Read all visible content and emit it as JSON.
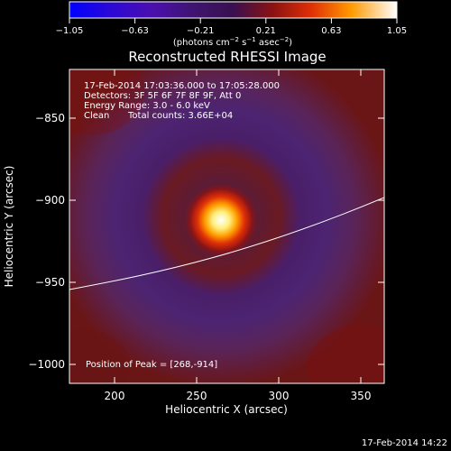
{
  "colorbar": {
    "ticks": [
      "−1.05",
      "−0.63",
      "−0.21",
      "0.21",
      "0.63",
      "1.05"
    ],
    "units_prefix": "(photons cm",
    "units_exp1": "−2",
    "units_mid": " s",
    "units_exp2": "−1",
    "units_mid2": " asec",
    "units_exp3": "−2",
    "units_suffix": ")"
  },
  "title": "Reconstructed RHESSI Image",
  "info": {
    "line1": "17-Feb-2014 17:03:36.000 to 17:05:28.000",
    "line2": "Detectors: 3F 5F 6F 7F 8F 9F, Att 0",
    "line3": "Energy Range: 3.0 - 6.0 keV",
    "line4_label": "Clean",
    "line4_counts": "Total counts: 3.66E+04",
    "peak": "Position of Peak = [268,-914]"
  },
  "axes": {
    "xlabel": "Heliocentric X (arcsec)",
    "ylabel": "Heliocentric Y (arcsec)",
    "xticks": [
      "200",
      "250",
      "300",
      "350"
    ],
    "yticks": [
      "−850",
      "−900",
      "−950",
      "−1000"
    ],
    "xlim": [
      172,
      364
    ],
    "ylim": [
      -1016,
      -824
    ]
  },
  "timestamp": "17-Feb-2014 14:22"
}
